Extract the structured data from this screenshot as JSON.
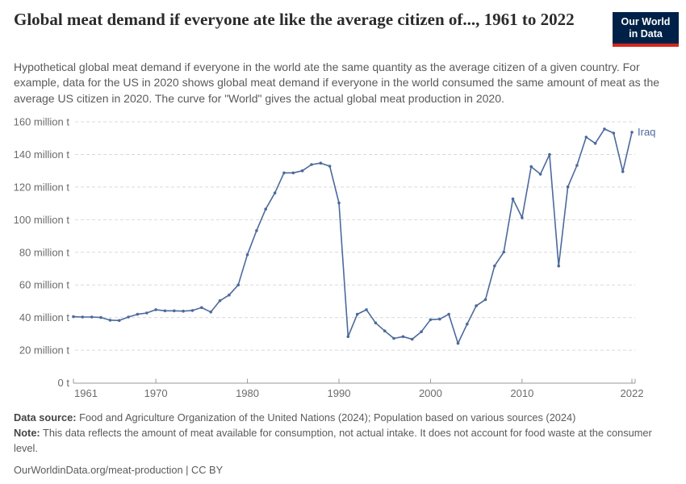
{
  "header": {
    "title": "Global meat demand if everyone ate like the average citizen of..., 1961 to 2022",
    "logo": {
      "line1": "Our World",
      "line2": "in Data"
    }
  },
  "subtitle": "Hypothetical global meat demand if everyone in the world ate the same quantity as the average citizen of a given country. For example, data for the US in 2020 shows global meat demand if everyone in the world consumed the same amount of meat as the average US citizen in 2020. The curve for \"World\" gives the actual global meat production in 2020.",
  "chart_data": {
    "type": "line",
    "series_label": "Iraq",
    "unit": "million t",
    "x": [
      1961,
      1962,
      1963,
      1964,
      1965,
      1966,
      1967,
      1968,
      1969,
      1970,
      1971,
      1972,
      1973,
      1974,
      1975,
      1976,
      1977,
      1978,
      1979,
      1980,
      1981,
      1982,
      1983,
      1984,
      1985,
      1986,
      1987,
      1988,
      1989,
      1990,
      1991,
      1992,
      1993,
      1994,
      1995,
      1996,
      1997,
      1998,
      1999,
      2000,
      2001,
      2002,
      2003,
      2004,
      2005,
      2006,
      2007,
      2008,
      2009,
      2010,
      2011,
      2012,
      2013,
      2014,
      2015,
      2016,
      2017,
      2018,
      2019,
      2020,
      2021,
      2022
    ],
    "values": [
      40.5,
      40.3,
      40.3,
      40,
      38.4,
      38.2,
      40.3,
      42,
      42.8,
      44.8,
      44.1,
      44.1,
      43.9,
      44.3,
      46.1,
      43.4,
      50.3,
      53.8,
      60,
      78.5,
      93.3,
      106.5,
      116.4,
      128.7,
      128.7,
      130,
      133.8,
      134.7,
      132.8,
      110.3,
      28.3,
      42,
      44.8,
      36.7,
      31.8,
      27.2,
      28.3,
      26.7,
      31.3,
      38.7,
      39,
      42,
      24.2,
      36,
      47.2,
      51,
      71.6,
      80.1,
      112.7,
      101.2,
      132.5,
      127.9,
      139.9,
      71.6,
      120.1,
      133.3,
      150.6,
      146.8,
      155.6,
      153.1,
      129.5,
      153.6
    ],
    "xlim": [
      1961,
      2022
    ],
    "ylim": [
      0,
      160
    ],
    "x_ticks": [
      1961,
      1970,
      1980,
      1990,
      2000,
      2010,
      2022
    ],
    "x_tick_labels": [
      "1961",
      "1970",
      "1980",
      "1990",
      "2000",
      "2010",
      "2022"
    ],
    "y_ticks": [
      0,
      20,
      40,
      60,
      80,
      100,
      120,
      140,
      160
    ],
    "y_tick_labels": [
      "0 t",
      "20 million t",
      "40 million t",
      "60 million t",
      "80 million t",
      "100 million t",
      "120 million t",
      "140 million t",
      "160 million t"
    ],
    "grid": true,
    "legend_position": "end-of-line",
    "line_color": "#4C6A9C"
  },
  "footer": {
    "source_label": "Data source:",
    "source_text": " Food and Agriculture Organization of the United Nations (2024); Population based on various sources (2024)",
    "note_label": "Note:",
    "note_text": " This data reflects the amount of meat available for consumption, not actual intake. It does not account for food waste at the consumer level.",
    "link": "OurWorldinData.org/meat-production | CC BY"
  }
}
